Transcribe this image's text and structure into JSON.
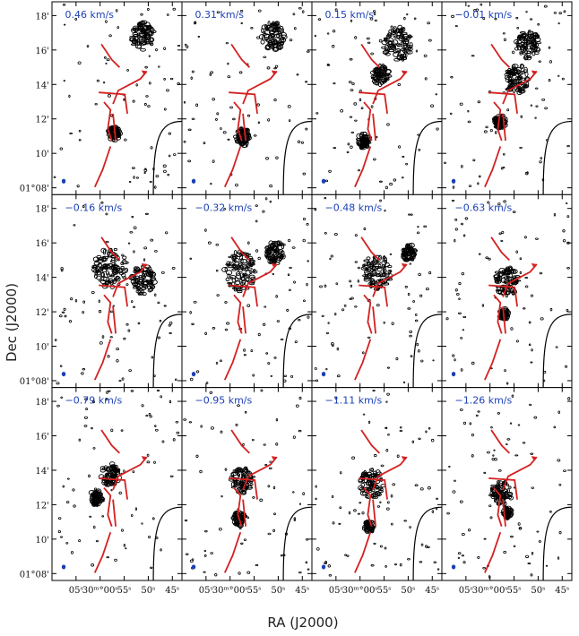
{
  "chart_data": {
    "type": "channel-map-grid",
    "xlabel": "RA (J2000)",
    "ylabel": "Dec (J2000)",
    "rows": 3,
    "cols": 4,
    "velocity_unit": "km/s",
    "panels": [
      {
        "label": "0.46 km/s",
        "velocity": 0.46
      },
      {
        "label": "0.31 km/s",
        "velocity": 0.31
      },
      {
        "label": "0.15 km/s",
        "velocity": 0.15
      },
      {
        "label": "−0.01 km/s",
        "velocity": -0.01
      },
      {
        "label": "−0.16 km/s",
        "velocity": -0.16
      },
      {
        "label": "−0.32 km/s",
        "velocity": -0.32
      },
      {
        "label": "−0.48 km/s",
        "velocity": -0.48
      },
      {
        "label": "−0.63 km/s",
        "velocity": -0.63
      },
      {
        "label": "−0.79 km/s",
        "velocity": -0.79
      },
      {
        "label": "−0.95 km/s",
        "velocity": -0.95
      },
      {
        "label": "−1.11 km/s",
        "velocity": -1.11
      },
      {
        "label": "−1.26 km/s",
        "velocity": -1.26
      }
    ],
    "dec_ticks": [
      {
        "label": "18'",
        "value": 18
      },
      {
        "label": "16'",
        "value": 16
      },
      {
        "label": "14'",
        "value": 14
      },
      {
        "label": "12'",
        "value": 12
      },
      {
        "label": "10'",
        "value": 10
      },
      {
        "label": "01°08'",
        "value": 8
      }
    ],
    "ra_ticks": [
      {
        "label": "05ˢ",
        "value": 5
      },
      {
        "label": "30ᵐ°00ˢ",
        "value": 0
      },
      {
        "label": "55ˢ",
        "value": -5
      },
      {
        "label": "50ˢ",
        "value": -10
      },
      {
        "label": "45ˢ",
        "value": -15
      }
    ],
    "dec_range_arcmin": [
      7.6,
      18.8
    ],
    "ra_range_sec": [
      10,
      -17
    ],
    "colors": {
      "contour": "#000000",
      "filament": "#d42020",
      "beam": "#1a3fb5",
      "label": "#1a3fb5"
    }
  }
}
